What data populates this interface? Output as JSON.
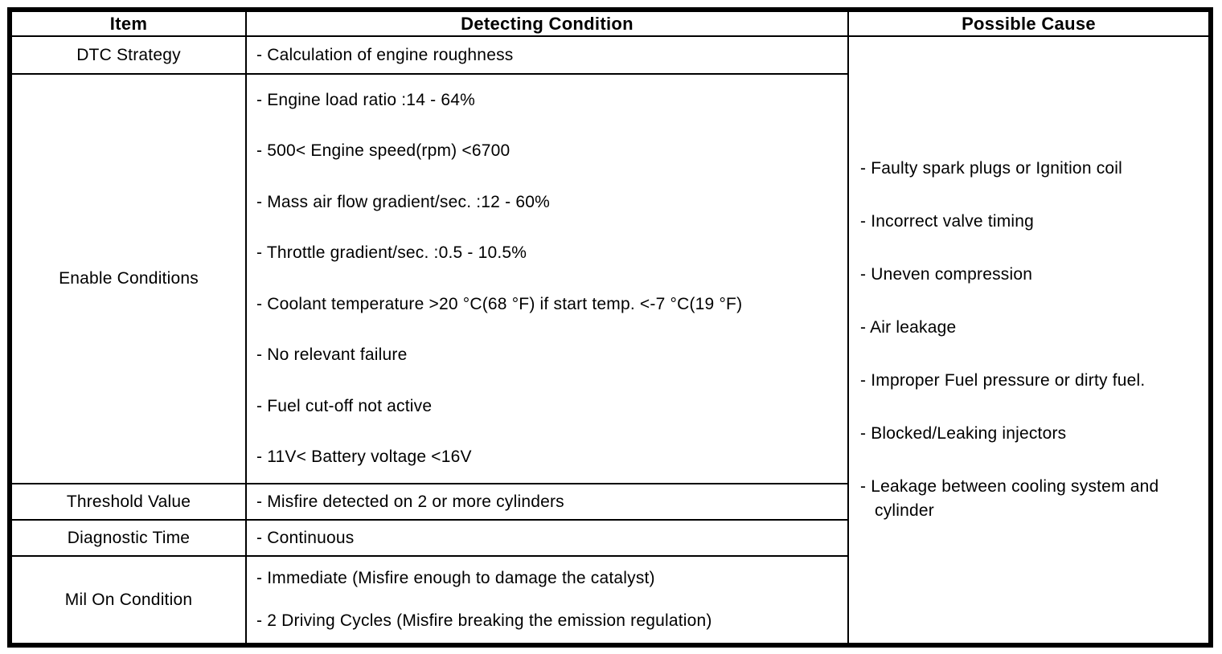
{
  "table": {
    "columns": [
      "Item",
      "Detecting Condition",
      "Possible Cause"
    ],
    "rows": [
      {
        "item": "DTC Strategy",
        "conditions": [
          "- Calculation of engine roughness"
        ]
      },
      {
        "item": "Enable Conditions",
        "conditions": [
          "- Engine load ratio :14 - 64%",
          "- 500< Engine speed(rpm) <6700",
          "- Mass air flow gradient/sec. :12 - 60%",
          "- Throttle gradient/sec. :0.5 - 10.5%",
          "- Coolant temperature >20 °C(68 °F) if start temp. <-7 °C(19 °F)",
          "- No relevant failure",
          "- Fuel cut-off not active",
          "- 11V< Battery voltage <16V"
        ]
      },
      {
        "item": "Threshold Value",
        "conditions": [
          "- Misfire detected on 2 or more cylinders"
        ]
      },
      {
        "item": "Diagnostic Time",
        "conditions": [
          "- Continuous"
        ]
      },
      {
        "item": "Mil On Condition",
        "conditions": [
          "- Immediate (Misfire enough to damage the catalyst)",
          "- 2 Driving Cycles (Misfire breaking the emission regulation)"
        ]
      }
    ],
    "possible_causes": [
      "- Faulty spark plugs or Ignition coil",
      "- Incorrect valve timing",
      "- Uneven compression",
      "- Air leakage",
      "- Improper Fuel pressure or dirty fuel.",
      "- Blocked/Leaking injectors",
      "- Leakage between cooling system and cylinder"
    ]
  },
  "colors": {
    "border": "#000000",
    "text": "#000000",
    "background": "#ffffff"
  }
}
